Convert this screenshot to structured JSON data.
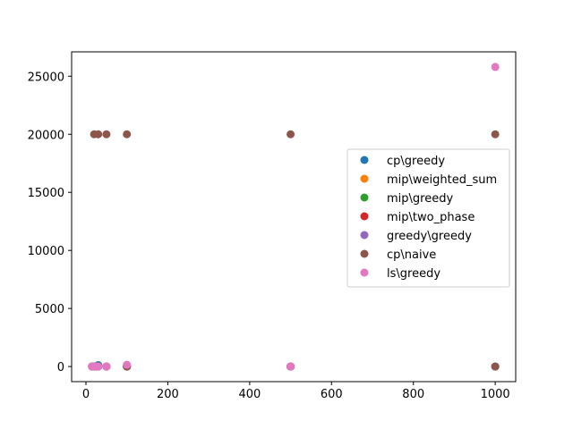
{
  "chart_data": {
    "type": "scatter",
    "title": "",
    "xlabel": "",
    "ylabel": "",
    "xlim": [
      -35,
      1050
    ],
    "ylim": [
      -1300,
      27100
    ],
    "xticks": [
      0,
      200,
      400,
      600,
      800,
      1000
    ],
    "yticks": [
      0,
      5000,
      10000,
      15000,
      20000,
      25000
    ],
    "grid": false,
    "legend_position": "center-right",
    "series": [
      {
        "name": "cp\\greedy",
        "color": "#1f77b4",
        "points": [
          [
            15,
            0
          ],
          [
            20,
            0
          ],
          [
            25,
            0
          ],
          [
            30,
            120
          ],
          [
            50,
            0
          ],
          [
            100,
            0
          ],
          [
            500,
            0
          ],
          [
            1000,
            0
          ]
        ]
      },
      {
        "name": "mip\\weighted_sum",
        "color": "#ff7f0e",
        "points": [
          [
            15,
            0
          ],
          [
            20,
            0
          ],
          [
            25,
            0
          ],
          [
            30,
            0
          ],
          [
            50,
            0
          ],
          [
            100,
            0
          ],
          [
            500,
            0
          ]
        ]
      },
      {
        "name": "mip\\greedy",
        "color": "#2ca02c",
        "points": [
          [
            15,
            0
          ],
          [
            20,
            0
          ],
          [
            25,
            0
          ],
          [
            30,
            0
          ],
          [
            50,
            0
          ],
          [
            100,
            0
          ],
          [
            500,
            0
          ]
        ]
      },
      {
        "name": "mip\\two_phase",
        "color": "#d62728",
        "points": [
          [
            15,
            0
          ],
          [
            20,
            0
          ],
          [
            25,
            0
          ],
          [
            30,
            0
          ],
          [
            50,
            0
          ],
          [
            100,
            0
          ],
          [
            500,
            0
          ]
        ]
      },
      {
        "name": "greedy\\greedy",
        "color": "#9467bd",
        "points": [
          [
            15,
            0
          ],
          [
            20,
            0
          ],
          [
            25,
            0
          ],
          [
            30,
            0
          ],
          [
            50,
            0
          ],
          [
            100,
            0
          ],
          [
            500,
            0
          ],
          [
            1000,
            0
          ]
        ]
      },
      {
        "name": "cp\\naive",
        "color": "#8c564b",
        "points": [
          [
            20,
            20000
          ],
          [
            30,
            20000
          ],
          [
            50,
            20000
          ],
          [
            100,
            20000
          ],
          [
            500,
            20000
          ],
          [
            1000,
            20000
          ],
          [
            15,
            0
          ],
          [
            25,
            0
          ],
          [
            100,
            0
          ],
          [
            500,
            0
          ],
          [
            1000,
            0
          ]
        ]
      },
      {
        "name": "ls\\greedy",
        "color": "#e377c2",
        "points": [
          [
            15,
            0
          ],
          [
            20,
            0
          ],
          [
            25,
            0
          ],
          [
            30,
            0
          ],
          [
            50,
            0
          ],
          [
            100,
            150
          ],
          [
            500,
            0
          ],
          [
            1000,
            25800
          ]
        ]
      }
    ]
  }
}
